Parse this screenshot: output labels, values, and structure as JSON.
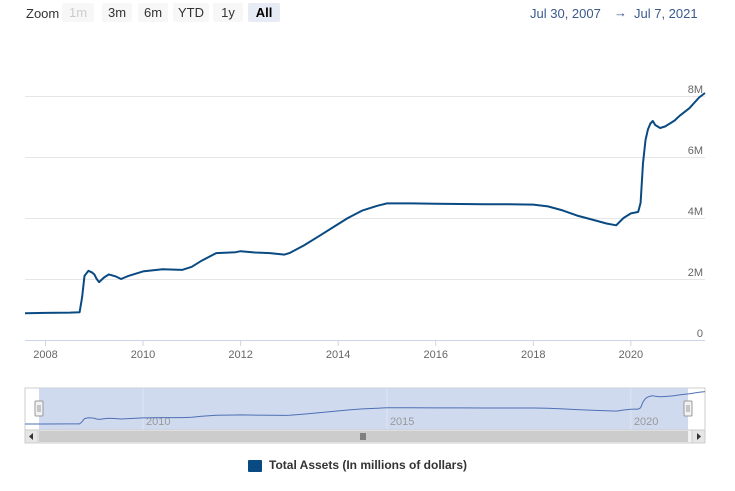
{
  "toolbar": {
    "zoom_label": "Zoom",
    "buttons": [
      {
        "label": "1m",
        "state": "disabled"
      },
      {
        "label": "3m",
        "state": "normal"
      },
      {
        "label": "6m",
        "state": "normal"
      },
      {
        "label": "YTD",
        "state": "normal"
      },
      {
        "label": "1y",
        "state": "normal"
      },
      {
        "label": "All",
        "state": "active"
      }
    ],
    "date_from": "Jul 30, 2007",
    "date_arrow": "→",
    "date_to": "Jul 7, 2021"
  },
  "colors": {
    "series": "#0a4a82",
    "navigator_mask": "#c7d3ec",
    "navigator_line": "#4f6fb4"
  },
  "chart_data": {
    "type": "line",
    "title": "",
    "xlabel": "",
    "ylabel": "",
    "x_ticks": [
      "2008",
      "2010",
      "2012",
      "2014",
      "2016",
      "2018",
      "2020"
    ],
    "y_ticks": [
      "0",
      "2M",
      "4M",
      "6M",
      "8M"
    ],
    "ylim": [
      0,
      8000000
    ],
    "xlim": [
      2007.58,
      2021.52
    ],
    "grid": "horizontal",
    "legend": "bottom-center",
    "navigator_ticks": [
      "2010",
      "2015",
      "2020"
    ],
    "series": [
      {
        "name": "Total Assets (In millions of dollars)",
        "x": [
          2007.58,
          2008.0,
          2008.5,
          2008.7,
          2008.75,
          2008.8,
          2008.88,
          2008.95,
          2009.0,
          2009.05,
          2009.1,
          2009.2,
          2009.3,
          2009.45,
          2009.55,
          2009.7,
          2010.0,
          2010.4,
          2010.8,
          2011.0,
          2011.2,
          2011.5,
          2011.9,
          2012.0,
          2012.3,
          2012.6,
          2012.9,
          2013.0,
          2013.3,
          2013.6,
          2013.9,
          2014.2,
          2014.5,
          2014.8,
          2015.0,
          2015.5,
          2016.0,
          2016.5,
          2017.0,
          2017.5,
          2018.0,
          2018.3,
          2018.6,
          2018.9,
          2019.2,
          2019.5,
          2019.7,
          2019.85,
          2020.0,
          2020.15,
          2020.2,
          2020.25,
          2020.3,
          2020.35,
          2020.4,
          2020.45,
          2020.5,
          2020.6,
          2020.7,
          2020.8,
          2020.9,
          2021.0,
          2021.2,
          2021.4,
          2021.52
        ],
        "values": [
          880000,
          890000,
          900000,
          910000,
          1400000,
          2100000,
          2270000,
          2220000,
          2150000,
          2000000,
          1900000,
          2050000,
          2150000,
          2080000,
          2000000,
          2100000,
          2250000,
          2320000,
          2300000,
          2400000,
          2600000,
          2850000,
          2880000,
          2910000,
          2870000,
          2850000,
          2800000,
          2850000,
          3100000,
          3400000,
          3700000,
          4000000,
          4250000,
          4400000,
          4480000,
          4480000,
          4470000,
          4460000,
          4450000,
          4450000,
          4440000,
          4380000,
          4250000,
          4080000,
          3950000,
          3820000,
          3760000,
          4000000,
          4150000,
          4200000,
          4500000,
          5800000,
          6550000,
          6900000,
          7100000,
          7180000,
          7050000,
          6950000,
          7000000,
          7100000,
          7200000,
          7350000,
          7600000,
          7950000,
          8100000
        ]
      }
    ]
  }
}
